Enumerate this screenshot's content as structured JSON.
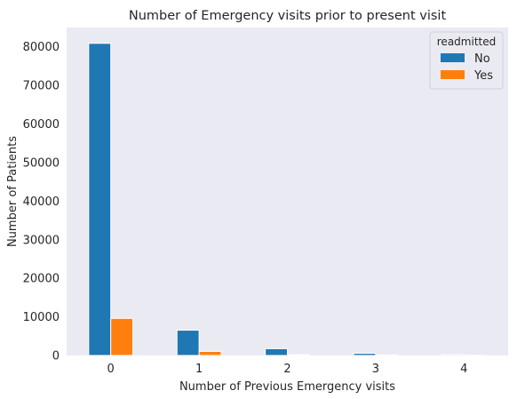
{
  "chart_data": {
    "type": "bar",
    "title": "Number of Emergency visits prior to present visit",
    "xlabel": "Number of Previous Emergency visits",
    "ylabel": "Number of Patients",
    "categories": [
      "0",
      "1",
      "2",
      "3",
      "4"
    ],
    "series": [
      {
        "name": "No",
        "color": "#1f77b4",
        "values": [
          80900,
          6550,
          1750,
          550,
          250
        ]
      },
      {
        "name": "Yes",
        "color": "#ff7f0e",
        "values": [
          9600,
          1050,
          230,
          100,
          40
        ]
      }
    ],
    "ylim": [
      0,
      85000
    ],
    "yticks": [
      0,
      10000,
      20000,
      30000,
      40000,
      50000,
      60000,
      70000,
      80000
    ],
    "grid": false,
    "legend": {
      "title": "readmitted",
      "placement": "top-right"
    },
    "background": "#eaeaf2"
  }
}
